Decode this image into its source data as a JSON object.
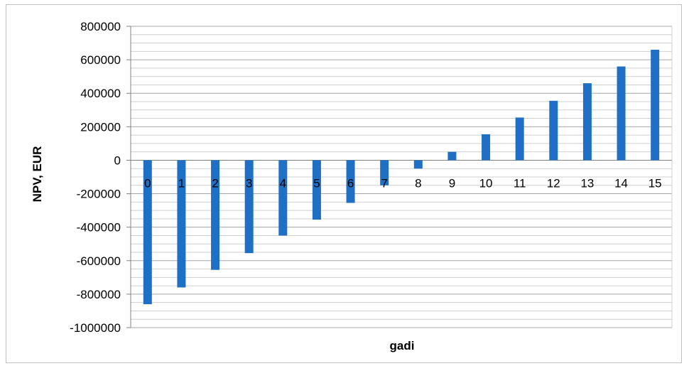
{
  "chart_data": {
    "type": "bar",
    "title": "",
    "xlabel": "gadi",
    "ylabel": "NPV, EUR",
    "categories": [
      "0",
      "1",
      "2",
      "3",
      "4",
      "5",
      "6",
      "7",
      "8",
      "9",
      "10",
      "11",
      "12",
      "13",
      "14",
      "15"
    ],
    "series": [
      {
        "values": [
          -860000,
          -760000,
          -655000,
          -555000,
          -450000,
          -355000,
          -255000,
          -150000,
          -50000,
          50000,
          155000,
          255000,
          355000,
          460000,
          560000,
          660000
        ],
        "color": "#1f6fc5"
      }
    ],
    "ylim": [
      -1000000,
      800000
    ],
    "ytick_step": 200000,
    "yticks": [
      "800000",
      "600000",
      "400000",
      "200000",
      "0",
      "-200000",
      "-400000",
      "-600000",
      "-800000",
      "-1000000"
    ],
    "minor_grid_step": 50000,
    "grid": true,
    "legend": "none"
  }
}
